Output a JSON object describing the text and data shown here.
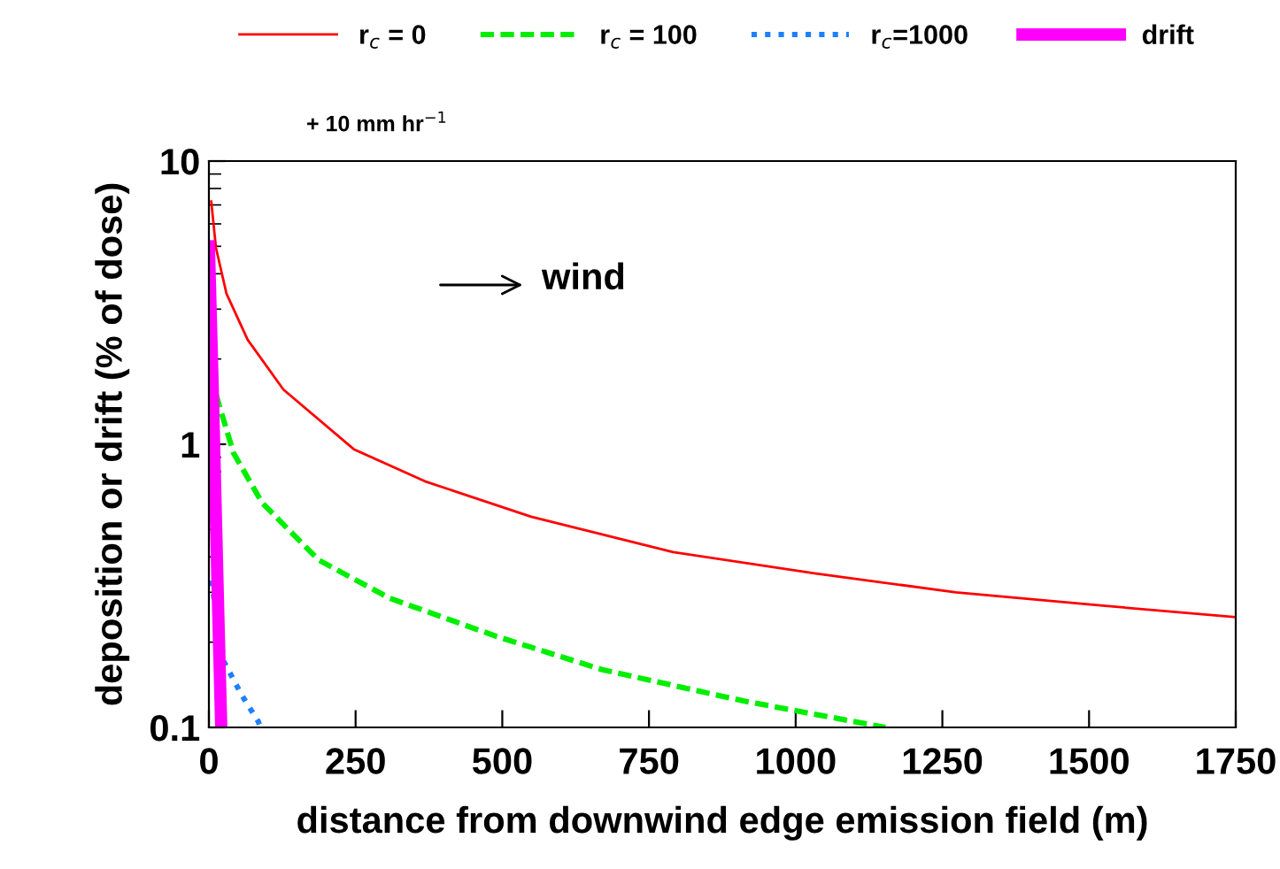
{
  "chart_data": {
    "type": "line",
    "xlabel": "distance from downwind edge emission field (m)",
    "ylabel": "deposition or drift (% of dose)",
    "xlim": [
      0,
      1750
    ],
    "xticks": [
      0,
      250,
      500,
      750,
      1000,
      1250,
      1500,
      1750
    ],
    "ylim": [
      0.1,
      10
    ],
    "yticks": [
      0.1,
      1,
      10
    ],
    "log": "y",
    "grid": false,
    "legend": "top",
    "annotations": [
      "+ 10 mm hr$^{−1}$",
      "wind"
    ],
    "series": [
      {
        "name": "r$_{c}$ = 0",
        "color": "#ff0000",
        "line_style": "solid",
        "x": [
          4,
          12,
          30,
          66,
          127,
          247,
          368,
          549,
          791,
          1032,
          1273,
          1515,
          1750
        ],
        "values": [
          7.2,
          4.94,
          3.4,
          2.34,
          1.56,
          0.96,
          0.74,
          0.555,
          0.416,
          0.35,
          0.3,
          0.27,
          0.245
        ]
      },
      {
        "name": "r$_{c}$ = 100",
        "color": "#00ee00",
        "line_style": "dashed",
        "x": [
          12,
          42,
          91,
          187,
          308,
          489,
          670,
          911,
          1153
        ],
        "values": [
          1.5,
          0.93,
          0.62,
          0.39,
          0.286,
          0.21,
          0.16,
          0.124,
          0.1
        ]
      },
      {
        "name": "r$_{c}$=1000",
        "color": "#1e7fff",
        "line_style": "dotted",
        "x": [
          4,
          26,
          56,
          84,
          88
        ],
        "values": [
          0.33,
          0.17,
          0.13,
          0.105,
          0.1
        ]
      },
      {
        "name": "drift",
        "color": "#ff00ff",
        "line_style": "solid",
        "x": [
          0,
          6,
          11,
          16,
          21
        ],
        "values": [
          5.0,
          1.73,
          0.66,
          0.25,
          0.1
        ]
      }
    ]
  }
}
